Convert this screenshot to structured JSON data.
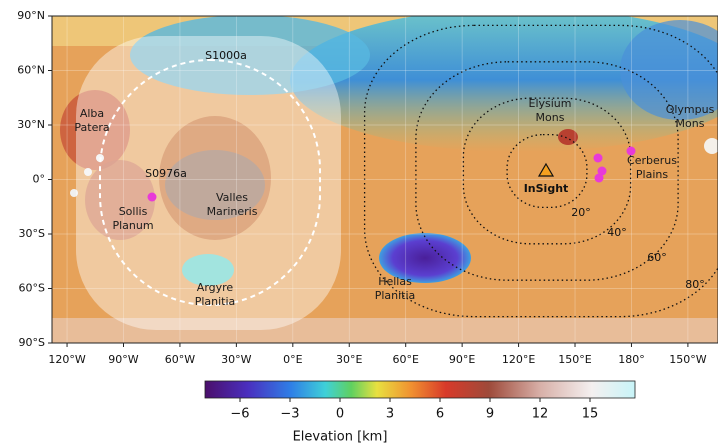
{
  "map": {
    "latlim": [
      -90,
      90
    ],
    "lonlim": [
      -128,
      226
    ],
    "lat_ticks": [
      {
        "value": 90,
        "label": "90°N"
      },
      {
        "value": 60,
        "label": "60°N"
      },
      {
        "value": 30,
        "label": "30°N"
      },
      {
        "value": 0,
        "label": "0°"
      },
      {
        "value": -30,
        "label": "30°S"
      },
      {
        "value": -60,
        "label": "60°S"
      },
      {
        "value": -90,
        "label": "90°S"
      }
    ],
    "lon_ticks": [
      {
        "value": -120,
        "label": "120°W"
      },
      {
        "value": -90,
        "label": "90°W"
      },
      {
        "value": -60,
        "label": "60°W"
      },
      {
        "value": -30,
        "label": "30°W"
      },
      {
        "value": 0,
        "label": "0°E"
      },
      {
        "value": 30,
        "label": "30°E"
      },
      {
        "value": 60,
        "label": "60°E"
      },
      {
        "value": 90,
        "label": "90°E"
      },
      {
        "value": 120,
        "label": "120°E"
      },
      {
        "value": 150,
        "label": "150°E"
      },
      {
        "value": 180,
        "label": "180°"
      },
      {
        "value": -150,
        "label": "150°W"
      }
    ],
    "places": [
      {
        "lines": [
          "Alba",
          "Patera"
        ]
      },
      {
        "lines": [
          "Valles",
          "Marineris"
        ]
      },
      {
        "lines": [
          "Sollis",
          "Planum"
        ]
      },
      {
        "lines": [
          "Argyre",
          "Planitia"
        ]
      },
      {
        "lines": [
          "Hellas",
          "Planitia"
        ]
      },
      {
        "lines": [
          "Elysium",
          "Mons"
        ]
      },
      {
        "lines": [
          "Olympus",
          "Mons"
        ]
      },
      {
        "lines": [
          "Cerberus",
          "Plains"
        ]
      }
    ],
    "station": "InSight",
    "events": [
      "S1000a",
      "S0976a"
    ],
    "distance_labels": [
      {
        "value": 20,
        "label": "20°"
      },
      {
        "value": 40,
        "label": "40°"
      },
      {
        "value": 60,
        "label": "60°"
      },
      {
        "value": 80,
        "label": "80°"
      }
    ]
  },
  "colorbar": {
    "label": "Elevation [km]",
    "lim": [
      -8.1,
      17.7
    ],
    "ticks": [
      {
        "value": -6,
        "label": "−6"
      },
      {
        "value": -3,
        "label": "−3"
      },
      0,
      3,
      6,
      9,
      12,
      15
    ]
  }
}
